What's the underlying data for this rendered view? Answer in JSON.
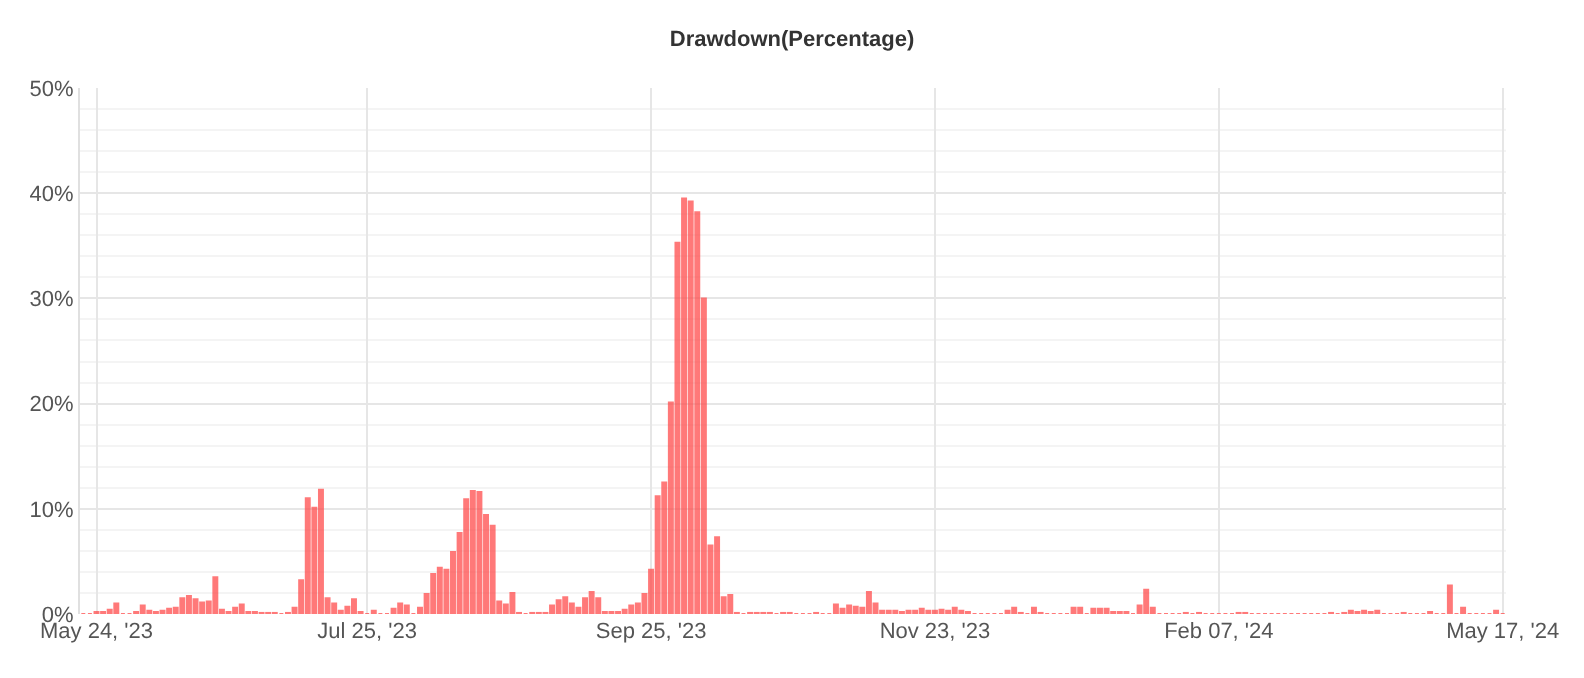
{
  "chart_data": {
    "type": "bar",
    "title": "Drawdown(Percentage)",
    "categories": [
      null,
      null,
      "May 24, '23",
      null,
      null,
      null,
      null,
      null,
      null,
      null,
      null,
      null,
      null,
      null,
      null,
      null,
      null,
      null,
      null,
      null,
      null,
      null,
      null,
      null,
      null,
      null,
      null,
      null,
      null,
      null,
      null,
      null,
      null,
      null,
      null,
      null,
      null,
      null,
      null,
      null,
      null,
      null,
      null,
      "Jul 25, '23",
      null,
      null,
      null,
      null,
      null,
      null,
      null,
      null,
      null,
      null,
      null,
      null,
      null,
      null,
      null,
      null,
      null,
      null,
      null,
      null,
      null,
      null,
      null,
      null,
      null,
      null,
      null,
      null,
      null,
      null,
      null,
      null,
      null,
      null,
      null,
      null,
      null,
      null,
      null,
      null,
      null,
      null,
      "Sep 25, '23",
      null,
      null,
      null,
      null,
      null,
      null,
      null,
      null,
      null,
      null,
      null,
      null,
      null,
      null,
      null,
      null,
      null,
      null,
      null,
      null,
      null,
      null,
      null,
      null,
      null,
      null,
      null,
      null,
      null,
      null,
      null,
      null,
      null,
      null,
      null,
      null,
      null,
      null,
      null,
      null,
      null,
      null,
      "Nov 23, '23",
      null,
      null,
      null,
      null,
      null,
      null,
      null,
      null,
      null,
      null,
      null,
      null,
      null,
      null,
      null,
      null,
      null,
      null,
      null,
      null,
      null,
      null,
      null,
      null,
      null,
      null,
      null,
      null,
      null,
      null,
      null,
      null,
      null,
      null,
      null,
      null,
      null,
      null,
      null,
      null,
      null,
      null,
      "Feb 07, '24",
      null,
      null,
      null,
      null,
      null,
      null,
      null,
      null,
      null,
      null,
      null,
      null,
      null,
      null,
      null,
      null,
      null,
      null,
      null,
      null,
      null,
      null,
      null,
      null,
      null,
      null,
      null,
      null,
      null,
      null,
      null,
      null,
      null,
      null,
      null,
      null,
      null,
      null,
      null,
      null,
      null,
      null,
      "May 17, '24"
    ],
    "values": [
      0,
      0,
      0.2,
      0.2,
      0.4,
      1.0,
      0,
      0,
      0.2,
      0.8,
      0.3,
      0.2,
      0.3,
      0.5,
      0.6,
      1.5,
      1.7,
      1.4,
      1.1,
      1.2,
      3.5,
      0.4,
      0.2,
      0.6,
      0.9,
      0.2,
      0.2,
      0.1,
      0.1,
      0.1,
      0,
      0.1,
      0.6,
      3.2,
      11.0,
      10.1,
      11.8,
      1.5,
      1.0,
      0.3,
      0.7,
      1.4,
      0.2,
      0,
      0.3,
      0,
      0,
      0.5,
      1.0,
      0.8,
      0,
      0.6,
      1.9,
      3.8,
      4.4,
      4.2,
      5.9,
      7.7,
      10.9,
      11.7,
      11.6,
      9.4,
      8.4,
      1.2,
      0.9,
      2.0,
      0.1,
      0,
      0.1,
      0.1,
      0.1,
      0.8,
      1.3,
      1.6,
      1.0,
      0.6,
      1.5,
      2.1,
      1.5,
      0.2,
      0.2,
      0.2,
      0.4,
      0.8,
      1.0,
      1.9,
      4.2,
      11.2,
      12.5,
      20.1,
      35.3,
      39.5,
      39.2,
      38.2,
      30.0,
      6.5,
      7.3,
      1.6,
      1.8,
      0.1,
      0,
      0.1,
      0.1,
      0.1,
      0.1,
      0,
      0.1,
      0.1,
      0,
      0,
      0,
      0.1,
      0,
      0,
      0.9,
      0.5,
      0.8,
      0.7,
      0.6,
      2.1,
      1.0,
      0.3,
      0.3,
      0.3,
      0.2,
      0.3,
      0.3,
      0.5,
      0.3,
      0.3,
      0.4,
      0.3,
      0.6,
      0.3,
      0.2,
      0,
      0,
      0,
      0,
      0,
      0.3,
      0.6,
      0.1,
      0,
      0.6,
      0.1,
      0,
      0,
      0,
      0,
      0.6,
      0.6,
      0,
      0.5,
      0.5,
      0.5,
      0.2,
      0.2,
      0.2,
      0,
      0.8,
      2.3,
      0.6,
      0,
      0,
      0,
      0,
      0.1,
      0,
      0.1,
      0,
      0,
      0,
      0,
      0,
      0.1,
      0.1,
      0,
      0,
      0,
      0,
      0,
      0,
      0,
      0,
      0,
      0,
      0,
      0,
      0.1,
      0,
      0.1,
      0.3,
      0.2,
      0.3,
      0.2,
      0.3,
      0,
      0,
      0,
      0.1,
      0,
      0,
      0,
      0.2,
      0,
      0,
      2.7,
      0,
      0.6,
      0,
      0,
      0,
      0,
      0.3,
      0
    ],
    "color": "#ff4d4d",
    "ylim": [
      0,
      50
    ],
    "yticks": [
      {
        "value": 0,
        "label": "0%"
      },
      {
        "value": 10,
        "label": "10%"
      },
      {
        "value": 20,
        "label": "20%"
      },
      {
        "value": 30,
        "label": "30%"
      },
      {
        "value": 40,
        "label": "40%"
      },
      {
        "value": 50,
        "label": "50%"
      }
    ],
    "grid": true,
    "legend": false
  }
}
